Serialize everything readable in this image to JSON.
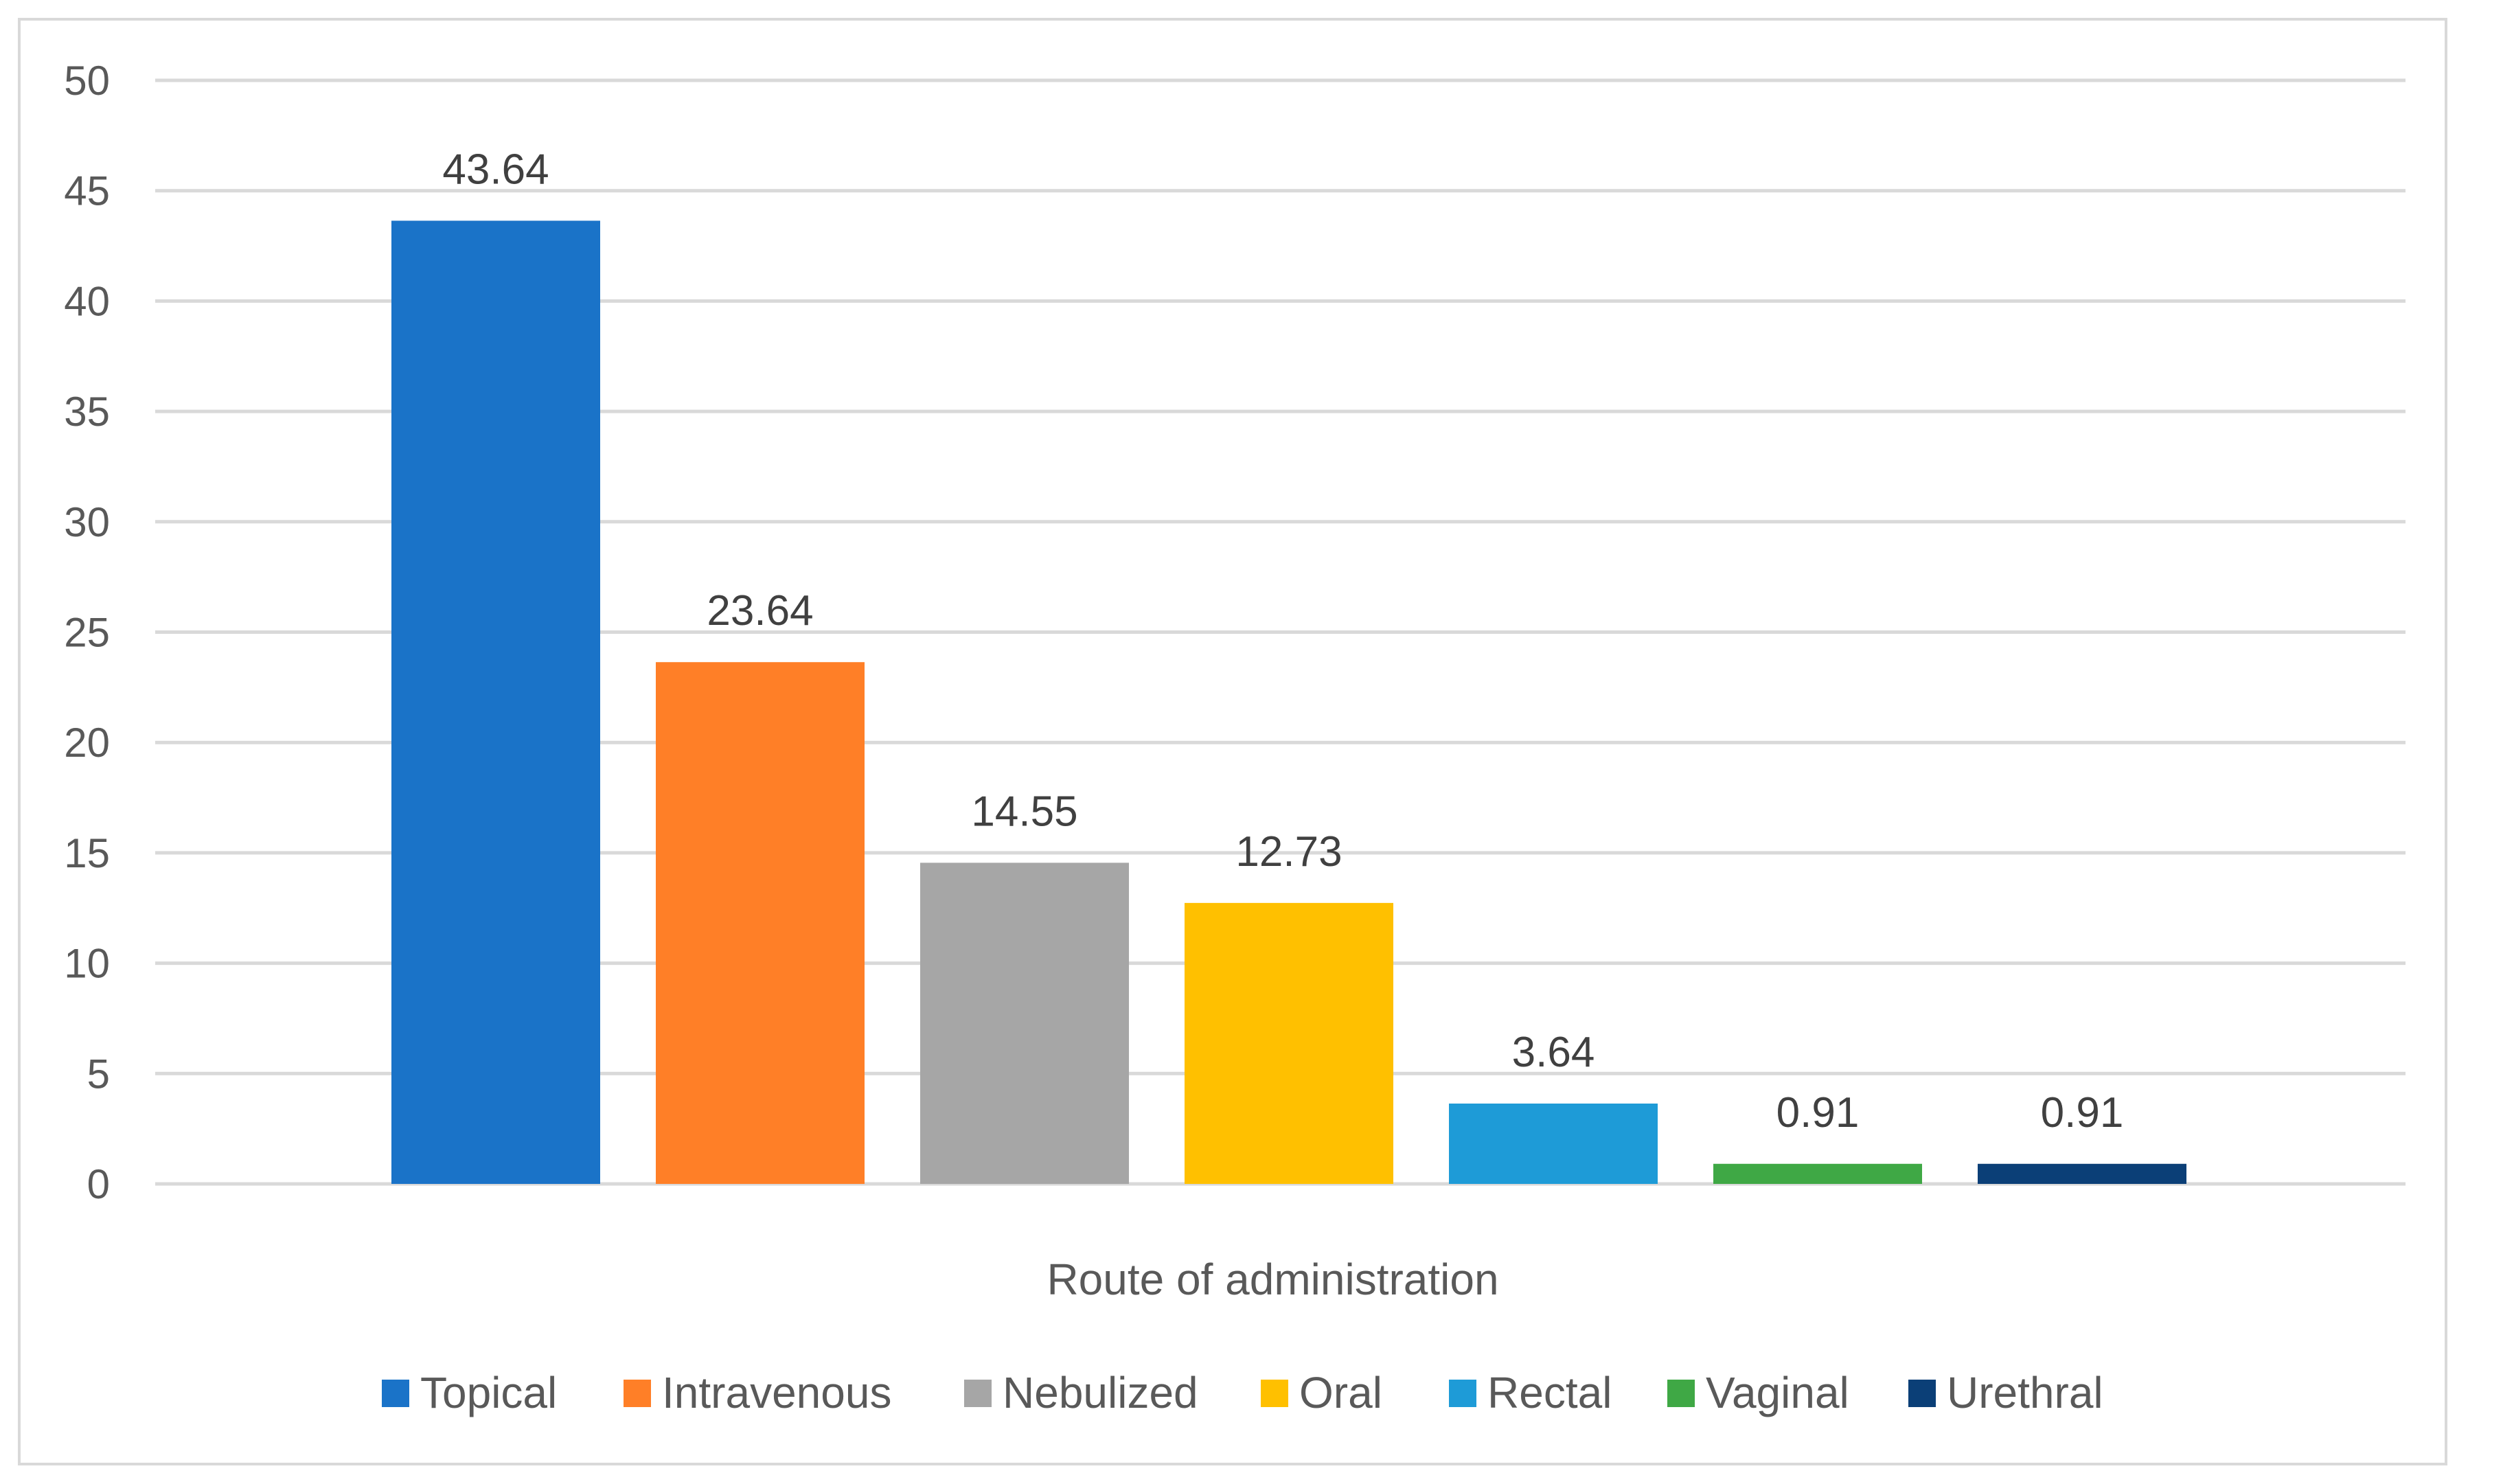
{
  "chart_data": {
    "type": "bar",
    "title": "",
    "xlabel": "Route of administration",
    "ylabel": "",
    "ylim": [
      0,
      50
    ],
    "yticks": [
      0,
      5,
      10,
      15,
      20,
      25,
      30,
      35,
      40,
      45,
      50
    ],
    "grid": true,
    "legend_position": "bottom",
    "series": [
      {
        "name": "Topical",
        "value": 43.64,
        "label": "43.64",
        "color": "#1a73c8"
      },
      {
        "name": "Intravenous",
        "value": 23.64,
        "label": "23.64",
        "color": "#ff7f27"
      },
      {
        "name": "Nebulized",
        "value": 14.55,
        "label": "14.55",
        "color": "#a6a6a6"
      },
      {
        "name": "Oral",
        "value": 12.73,
        "label": "12.73",
        "color": "#ffc000"
      },
      {
        "name": "Rectal",
        "value": 3.64,
        "label": "3.64",
        "color": "#1e9bd7"
      },
      {
        "name": "Vaginal",
        "value": 0.91,
        "label": "0.91",
        "color": "#3fa845"
      },
      {
        "name": "Urethral",
        "value": 0.91,
        "label": "0.91",
        "color": "#0b3f77"
      }
    ]
  }
}
